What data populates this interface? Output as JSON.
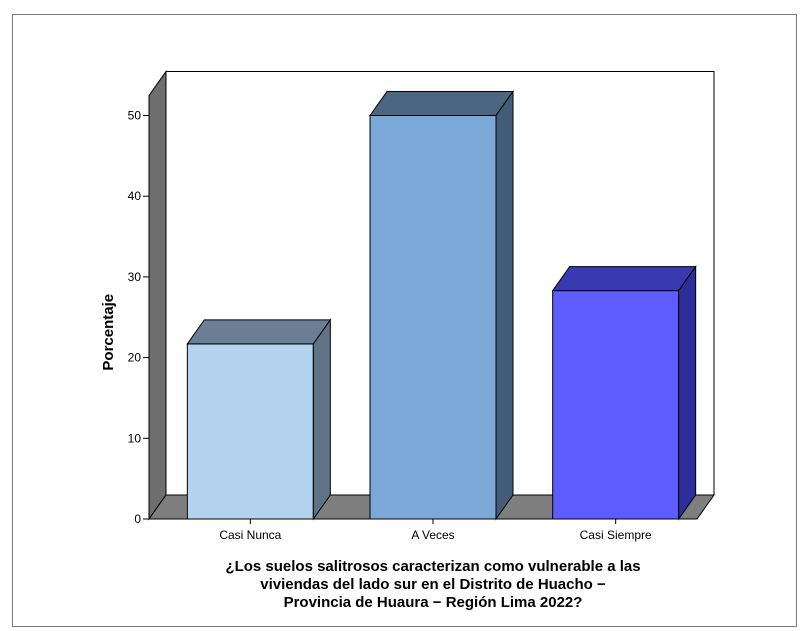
{
  "chart_data": {
    "type": "bar",
    "title": "",
    "ylabel": "Porcentaje",
    "xlabel_lines": [
      "¿Los suelos salitrosos caracterizan como vulnerable a las",
      "viviendas del lado sur en el Distrito de Huacho −",
      "Provincia de Huaura − Región Lima 2022?"
    ],
    "categories": [
      "Casi Nunca",
      "A Veces",
      "Casi Siempre"
    ],
    "values": [
      21.7,
      50.0,
      28.3
    ],
    "ylim": [
      0,
      50
    ],
    "yticks": [
      0,
      10,
      20,
      30,
      40,
      50
    ],
    "grid": false,
    "legend": "none",
    "three_d": true,
    "colors": {
      "bar_fronts": [
        "#b3d3ee",
        "#7ba8d6",
        "#5c5cff"
      ],
      "bar_tops": [
        "#6a7f94",
        "#4a6682",
        "#3a3ab0"
      ],
      "bar_sides": [
        "#5f7387",
        "#435d78",
        "#2e2e9a"
      ],
      "floor": "#7f7f7f",
      "left_wall": "#6e6e6e",
      "background": "#ffffff",
      "outline": "#000000"
    }
  }
}
